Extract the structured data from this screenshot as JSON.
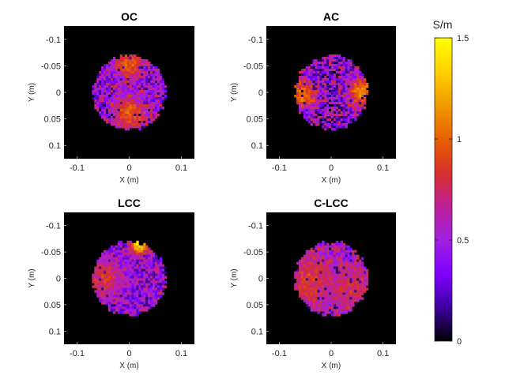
{
  "chart_data": [
    {
      "type": "heatmap",
      "title": "OC",
      "xlabel": "X (m)",
      "ylabel": "Y (m)",
      "xlim": [
        -0.125,
        0.125
      ],
      "ylim": [
        -0.125,
        0.125
      ],
      "y_reversed": true,
      "xticks": [
        -0.1,
        0,
        0.1
      ],
      "xtick_labels": [
        "-0.1",
        "0",
        "0.1"
      ],
      "yticks": [
        -0.1,
        -0.05,
        0,
        0.05,
        0.1
      ],
      "ytick_labels": [
        "-0.1",
        "-0.05",
        "0",
        "0.05",
        "0.1"
      ],
      "background_value": 0,
      "disk": {
        "center": [
          0,
          0
        ],
        "radius": 0.07
      },
      "pattern": {
        "base": 0.45,
        "spread": 0.35,
        "hotspots": [
          {
            "x": 0.0,
            "y": -0.055,
            "value": 1.0,
            "sigma": 0.02
          },
          {
            "x": 0.0,
            "y": 0.04,
            "value": 0.95,
            "sigma": 0.025
          }
        ]
      }
    },
    {
      "type": "heatmap",
      "title": "AC",
      "xlabel": "X (m)",
      "ylabel": "Y (m)",
      "xlim": [
        -0.125,
        0.125
      ],
      "ylim": [
        -0.125,
        0.125
      ],
      "y_reversed": true,
      "xticks": [
        -0.1,
        0,
        0.1
      ],
      "xtick_labels": [
        "-0.1",
        "0",
        "0.1"
      ],
      "yticks": [
        -0.1,
        -0.05,
        0,
        0.05,
        0.1
      ],
      "ytick_labels": [
        "-0.1",
        "-0.05",
        "0",
        "0.05",
        "0.1"
      ],
      "background_value": 0,
      "disk": {
        "center": [
          0,
          0
        ],
        "radius": 0.07
      },
      "pattern": {
        "base": 0.4,
        "spread": 0.4,
        "hotspots": [
          {
            "x": 0.06,
            "y": 0.0,
            "value": 1.1,
            "sigma": 0.02
          },
          {
            "x": -0.055,
            "y": 0.005,
            "value": 1.05,
            "sigma": 0.02
          }
        ]
      }
    },
    {
      "type": "heatmap",
      "title": "LCC",
      "xlabel": "X (m)",
      "ylabel": "Y (m)",
      "xlim": [
        -0.125,
        0.125
      ],
      "ylim": [
        -0.125,
        0.125
      ],
      "y_reversed": true,
      "xticks": [
        -0.1,
        0,
        0.1
      ],
      "xtick_labels": [
        "-0.1",
        "0",
        "0.1"
      ],
      "yticks": [
        -0.1,
        -0.05,
        0,
        0.05,
        0.1
      ],
      "ytick_labels": [
        "-0.1",
        "-0.05",
        "0",
        "0.05",
        "0.1"
      ],
      "background_value": 0,
      "disk": {
        "center": [
          0,
          0
        ],
        "radius": 0.07
      },
      "pattern": {
        "base": 0.45,
        "spread": 0.3,
        "hotspots": [
          {
            "x": 0.02,
            "y": -0.065,
            "value": 1.45,
            "sigma": 0.012
          },
          {
            "x": -0.05,
            "y": 0.0,
            "value": 0.85,
            "sigma": 0.025
          }
        ]
      }
    },
    {
      "type": "heatmap",
      "title": "C-LCC",
      "xlabel": "X (m)",
      "ylabel": "Y (m)",
      "xlim": [
        -0.125,
        0.125
      ],
      "ylim": [
        -0.125,
        0.125
      ],
      "y_reversed": true,
      "xticks": [
        -0.1,
        0,
        0.1
      ],
      "xtick_labels": [
        "-0.1",
        "0",
        "0.1"
      ],
      "yticks": [
        -0.1,
        -0.05,
        0,
        0.05,
        0.1
      ],
      "ytick_labels": [
        "-0.1",
        "-0.05",
        "0",
        "0.05",
        "0.1"
      ],
      "background_value": 0,
      "disk": {
        "center": [
          0,
          0
        ],
        "radius": 0.07
      },
      "pattern": {
        "base": 0.55,
        "spread": 0.3,
        "hotspots": [
          {
            "x": -0.04,
            "y": 0.0,
            "value": 0.85,
            "sigma": 0.03
          },
          {
            "x": 0.04,
            "y": 0.02,
            "value": 0.8,
            "sigma": 0.03
          }
        ]
      }
    }
  ],
  "colorbar": {
    "unit": "S/m",
    "min": 0,
    "max": 1.5,
    "ticks": [
      0,
      0.5,
      1,
      1.5
    ],
    "tick_labels": [
      "0",
      "0.5",
      "1",
      "1.5"
    ],
    "colormap": "gnuplot",
    "colormap_stops": [
      "#000000",
      "#3c00a0",
      "#8000ff",
      "#a020e0",
      "#c0209a",
      "#d8302a",
      "#e86000",
      "#f09a00",
      "#ffd000",
      "#ffff00"
    ]
  }
}
